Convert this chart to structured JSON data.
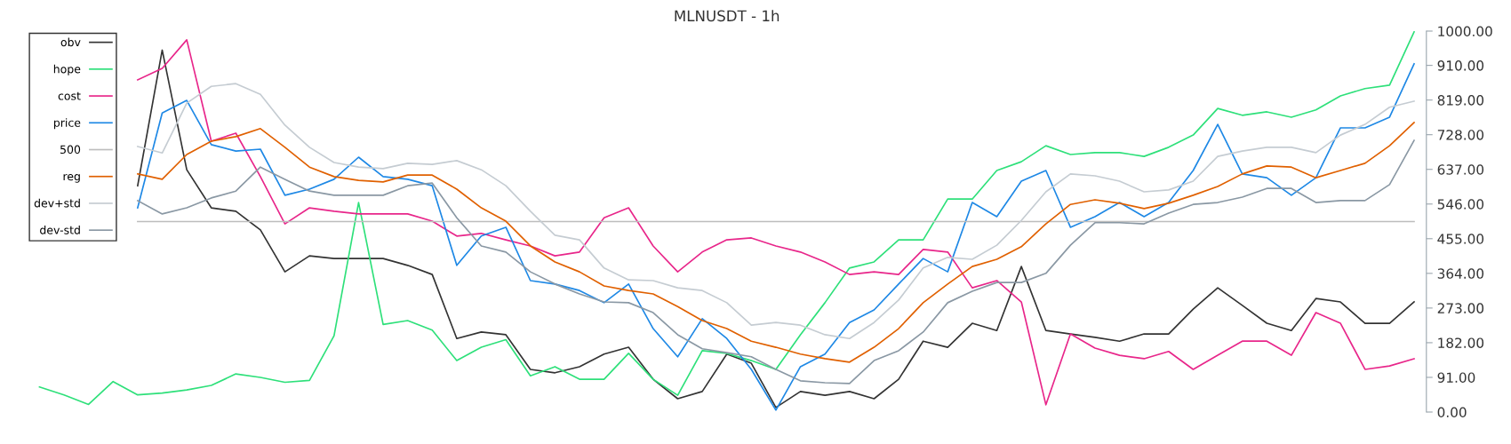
{
  "chart_data": {
    "type": "line",
    "title": "MLNUSDT - 1h",
    "categories": [
      null,
      null,
      null,
      null,
      null,
      null,
      null,
      null,
      null,
      null,
      null,
      null,
      null,
      null,
      null,
      null,
      null,
      null,
      null,
      null,
      null,
      null,
      null,
      null,
      null,
      null,
      null,
      null,
      null,
      null,
      null,
      null,
      null,
      null,
      null,
      null,
      null,
      null,
      null,
      null,
      null,
      null,
      null,
      null,
      null,
      null,
      null,
      null,
      null,
      null,
      null,
      null,
      null,
      null,
      null,
      null,
      null
    ],
    "series": [
      {
        "name": "obv",
        "color": "#333333",
        "values": [
          null,
          null,
          null,
          null,
          594,
          950,
          636,
          536,
          527,
          478,
          368,
          410,
          403,
          403,
          403,
          385,
          361,
          193,
          210,
          203,
          112,
          103,
          119,
          152,
          170,
          86,
          35,
          54,
          152,
          128,
          12,
          54,
          44,
          54,
          35,
          86,
          186,
          170,
          233,
          214,
          382,
          214,
          205,
          196,
          186,
          205,
          205,
          270,
          326,
          280,
          233,
          214,
          298,
          289,
          233,
          233,
          289
        ]
      },
      {
        "name": "hope",
        "color": "#2ee07a",
        "values": [
          66,
          45,
          20,
          80,
          45,
          50,
          58,
          70,
          100,
          91,
          78,
          83,
          200,
          550,
          230,
          240,
          215,
          135,
          170,
          190,
          95,
          119,
          86,
          86,
          154,
          86,
          44,
          161,
          154,
          135,
          112,
          203,
          287,
          378,
          394,
          452,
          452,
          559,
          559,
          634,
          657,
          699,
          676,
          681,
          681,
          671,
          695,
          727,
          797,
          779,
          788,
          774,
          793,
          830,
          849,
          858,
          998
        ]
      },
      {
        "name": "cost",
        "color": "#e8268a",
        "values": [
          null,
          null,
          null,
          null,
          872,
          902,
          977,
          711,
          732,
          618,
          494,
          536,
          527,
          520,
          520,
          520,
          501,
          462,
          469,
          452,
          436,
          410,
          420,
          510,
          536,
          436,
          368,
          420,
          452,
          457,
          436,
          420,
          394,
          361,
          368,
          361,
          427,
          420,
          326,
          345,
          289,
          19,
          205,
          168,
          149,
          140,
          159,
          112,
          149,
          186,
          186,
          149,
          261,
          233,
          112,
          121,
          140
        ]
      },
      {
        "name": "price",
        "color": "#1e88e5",
        "values": [
          null,
          null,
          null,
          null,
          536,
          785,
          818,
          702,
          685,
          690,
          569,
          585,
          611,
          669,
          618,
          611,
          594,
          385,
          462,
          485,
          345,
          336,
          319,
          287,
          336,
          219,
          145,
          245,
          193,
          112,
          5,
          119,
          152,
          235,
          268,
          336,
          403,
          368,
          550,
          513,
          606,
          634,
          485,
          513,
          550,
          513,
          550,
          634,
          755,
          625,
          615,
          569,
          615,
          746,
          746,
          774,
          914
        ]
      },
      {
        "name": "500",
        "color": "#bdbdbd",
        "values": [
          null,
          null,
          null,
          null,
          500,
          500,
          500,
          500,
          500,
          500,
          500,
          500,
          500,
          500,
          500,
          500,
          500,
          500,
          500,
          500,
          500,
          500,
          500,
          500,
          500,
          500,
          500,
          500,
          500,
          500,
          500,
          500,
          500,
          500,
          500,
          500,
          500,
          500,
          500,
          500,
          500,
          500,
          500,
          500,
          500,
          500,
          500,
          500,
          500,
          500,
          500,
          500,
          500,
          500,
          500,
          500,
          500
        ]
      },
      {
        "name": "reg",
        "color": "#e06000",
        "values": [
          null,
          null,
          null,
          null,
          625,
          611,
          676,
          711,
          723,
          744,
          695,
          643,
          618,
          608,
          604,
          622,
          622,
          585,
          536,
          501,
          436,
          394,
          368,
          331,
          319,
          310,
          277,
          240,
          219,
          186,
          170,
          152,
          140,
          131,
          170,
          219,
          287,
          336,
          382,
          401,
          434,
          494,
          545,
          557,
          548,
          534,
          548,
          569,
          592,
          625,
          646,
          643,
          615,
          634,
          653,
          699,
          760
        ]
      },
      {
        "name": "dev+std",
        "color": "#c5ccd2",
        "values": [
          null,
          null,
          null,
          null,
          697,
          680,
          811,
          855,
          862,
          834,
          753,
          695,
          655,
          643,
          639,
          653,
          650,
          660,
          636,
          594,
          527,
          464,
          452,
          378,
          347,
          345,
          326,
          319,
          287,
          228,
          235,
          228,
          203,
          193,
          235,
          294,
          378,
          406,
          401,
          438,
          503,
          578,
          625,
          620,
          606,
          578,
          583,
          606,
          671,
          685,
          695,
          695,
          681,
          727,
          755,
          800,
          816
        ]
      },
      {
        "name": "dev-std",
        "color": "#8a98a4",
        "values": [
          null,
          null,
          null,
          null,
          555,
          520,
          536,
          562,
          580,
          643,
          611,
          580,
          569,
          569,
          569,
          594,
          601,
          510,
          436,
          420,
          368,
          336,
          310,
          289,
          287,
          261,
          203,
          166,
          156,
          145,
          112,
          82,
          77,
          75,
          135,
          161,
          210,
          287,
          317,
          340,
          340,
          364,
          438,
          497,
          497,
          494,
          522,
          545,
          550,
          564,
          587,
          587,
          550,
          555,
          555,
          597,
          713
        ]
      }
    ],
    "ylim": [
      0,
      1000
    ],
    "yticks": [
      {
        "value": 0,
        "label": "0.00"
      },
      {
        "value": 91,
        "label": "91.00"
      },
      {
        "value": 182,
        "label": "182.00"
      },
      {
        "value": 273,
        "label": "273.00"
      },
      {
        "value": 364,
        "label": "364.00"
      },
      {
        "value": 455,
        "label": "455.00"
      },
      {
        "value": 546,
        "label": "546.00"
      },
      {
        "value": 637,
        "label": "637.00"
      },
      {
        "value": 728,
        "label": "728.00"
      },
      {
        "value": 819,
        "label": "819.00"
      },
      {
        "value": 910,
        "label": "910.00"
      },
      {
        "value": 1000,
        "label": "1000.00"
      }
    ],
    "tick_labels": "y",
    "legend": "top left",
    "grid": false,
    "marker": "none",
    "line_style": "solid"
  }
}
